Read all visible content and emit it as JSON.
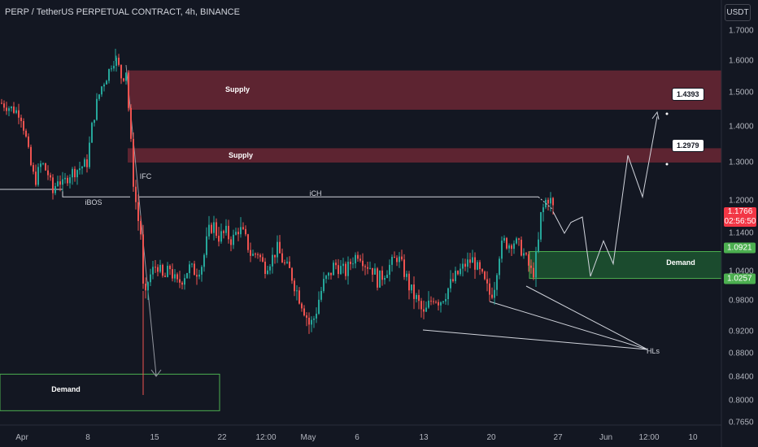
{
  "header": {
    "symbol": "PERP / TetherUS PERPETUAL CONTRACT, 4h, BINANCE",
    "currency": "USDT"
  },
  "current": {
    "price": "1.1766",
    "countdown": "02:56:50"
  },
  "chart_data": {
    "type": "candlestick",
    "title": "PERP / TetherUS PERPETUAL CONTRACT, 4h, BINANCE",
    "xlabel": "",
    "ylabel": "USDT",
    "ylim": [
      0.76,
      1.76
    ],
    "price_ticks": [
      "1.7000",
      "1.6000",
      "1.5000",
      "1.4000",
      "1.3000",
      "1.2000",
      "1.1400",
      "1.0400",
      "0.9800",
      "0.9200",
      "0.8800",
      "0.8400",
      "0.8000",
      "0.7650"
    ],
    "time_ticks": [
      "Apr",
      "8",
      "15",
      "22",
      "12:00",
      "May",
      "6",
      "13",
      "20",
      "27",
      "Jun",
      "12:00",
      "10"
    ],
    "price_path": [
      [
        0,
        1.47
      ],
      [
        8,
        1.46
      ],
      [
        16,
        1.45
      ],
      [
        24,
        1.44
      ],
      [
        30,
        1.38
      ],
      [
        36,
        1.3
      ],
      [
        42,
        1.25
      ],
      [
        50,
        1.3
      ],
      [
        58,
        1.27
      ],
      [
        64,
        1.22
      ],
      [
        70,
        1.26
      ],
      [
        76,
        1.24
      ],
      [
        84,
        1.27
      ],
      [
        92,
        1.28
      ],
      [
        100,
        1.29
      ],
      [
        106,
        1.3
      ],
      [
        112,
        1.4
      ],
      [
        118,
        1.47
      ],
      [
        124,
        1.52
      ],
      [
        130,
        1.55
      ],
      [
        136,
        1.59
      ],
      [
        141,
        1.61
      ],
      [
        145,
        1.58
      ],
      [
        149,
        1.54
      ],
      [
        154,
        1.57
      ],
      [
        158,
        1.42
      ],
      [
        163,
        1.25
      ],
      [
        167,
        1.18
      ],
      [
        172,
        1.14
      ],
      [
        176,
        0.96
      ],
      [
        181,
        1.02
      ],
      [
        186,
        1.04
      ],
      [
        192,
        1.06
      ],
      [
        200,
        1.02
      ],
      [
        208,
        1.05
      ],
      [
        216,
        1.01
      ],
      [
        224,
        1.03
      ],
      [
        232,
        1.05
      ],
      [
        240,
        1.04
      ],
      [
        248,
        1.06
      ],
      [
        254,
        1.13
      ],
      [
        260,
        1.16
      ],
      [
        268,
        1.13
      ],
      [
        276,
        1.14
      ],
      [
        284,
        1.12
      ],
      [
        292,
        1.15
      ],
      [
        300,
        1.13
      ],
      [
        308,
        1.08
      ],
      [
        316,
        1.09
      ],
      [
        324,
        1.05
      ],
      [
        332,
        1.07
      ],
      [
        340,
        1.1
      ],
      [
        348,
        1.06
      ],
      [
        356,
        1.04
      ],
      [
        364,
        1.0
      ],
      [
        372,
        0.97
      ],
      [
        380,
        0.93
      ],
      [
        386,
        0.95
      ],
      [
        392,
        0.99
      ],
      [
        398,
        1.02
      ],
      [
        404,
        1.03
      ],
      [
        410,
        1.06
      ],
      [
        416,
        1.05
      ],
      [
        424,
        1.04
      ],
      [
        432,
        1.07
      ],
      [
        440,
        1.09
      ],
      [
        448,
        1.06
      ],
      [
        456,
        1.05
      ],
      [
        464,
        1.02
      ],
      [
        472,
        1.04
      ],
      [
        480,
        1.06
      ],
      [
        488,
        1.08
      ],
      [
        496,
        1.04
      ],
      [
        504,
        1.0
      ],
      [
        512,
        0.98
      ],
      [
        520,
        0.95
      ],
      [
        526,
        0.97
      ],
      [
        532,
        0.99
      ],
      [
        540,
        0.98
      ],
      [
        548,
        1.0
      ],
      [
        556,
        1.02
      ],
      [
        564,
        1.04
      ],
      [
        572,
        1.06
      ],
      [
        580,
        1.07
      ],
      [
        588,
        1.04
      ],
      [
        596,
        1.01
      ],
      [
        602,
        0.99
      ],
      [
        608,
        1.02
      ],
      [
        612,
        1.08
      ],
      [
        618,
        1.12
      ],
      [
        624,
        1.11
      ],
      [
        630,
        1.12
      ],
      [
        636,
        1.11
      ],
      [
        642,
        1.09
      ],
      [
        648,
        1.06
      ],
      [
        654,
        1.03
      ],
      [
        660,
        1.1
      ],
      [
        664,
        1.17
      ],
      [
        668,
        1.19
      ],
      [
        672,
        1.21
      ],
      [
        676,
        1.2
      ],
      [
        680,
        1.18
      ]
    ],
    "zones": [
      {
        "label": "Supply",
        "kind": "supply",
        "from": 1.45,
        "to": 1.57
      },
      {
        "label": "Supply",
        "kind": "supply",
        "from": 1.3,
        "to": 1.34
      },
      {
        "label": "Demand",
        "kind": "demand",
        "from": 1.0257,
        "to": 1.0921
      },
      {
        "label": "Demand",
        "kind": "demand",
        "from": 0.784,
        "to": 0.845
      }
    ],
    "levels": [
      {
        "label": "iBOS",
        "value": 1.21
      },
      {
        "label": "iCH",
        "value": 1.21
      }
    ],
    "projection": [
      [
        680,
        1.18
      ],
      [
        694,
        1.14
      ],
      [
        702,
        1.16
      ],
      [
        716,
        1.17
      ],
      [
        726,
        1.03
      ],
      [
        742,
        1.12
      ],
      [
        754,
        1.06
      ],
      [
        772,
        1.32
      ],
      [
        790,
        1.21
      ],
      [
        808,
        1.43
      ]
    ],
    "annotations": [
      {
        "text": "IFC"
      },
      {
        "text": "HLs"
      }
    ],
    "targets": [
      "1.4393",
      "1.2979"
    ],
    "zone_edges": [
      "1.0921",
      "1.0257"
    ],
    "colors": {
      "background": "#131722",
      "up": "#26a69a",
      "down": "#ef5350",
      "supply": "#9a2f3e",
      "demand": "#1f5d33",
      "demand_border": "#4caf50"
    }
  }
}
